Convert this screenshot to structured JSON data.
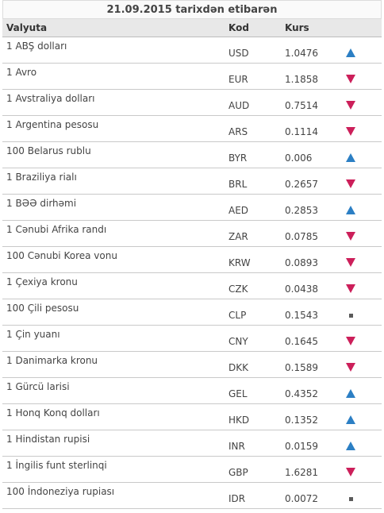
{
  "header": {
    "title": "21.09.2015 tarixdən etibarən"
  },
  "columns": {
    "currency": "Valyuta",
    "code": "Kod",
    "rate": "Kurs"
  },
  "colors": {
    "up": "#2c7fc4",
    "down": "#cc1f5a",
    "flat": "#5a5a5a"
  },
  "rows": [
    {
      "name": "1 ABŞ dolları",
      "code": "USD",
      "rate": "1.0476",
      "trend": "up"
    },
    {
      "name": "1 Avro",
      "code": "EUR",
      "rate": "1.1858",
      "trend": "down"
    },
    {
      "name": "1 Avstraliya dolları",
      "code": "AUD",
      "rate": "0.7514",
      "trend": "down"
    },
    {
      "name": "1 Argentina pesosu",
      "code": "ARS",
      "rate": "0.1114",
      "trend": "down"
    },
    {
      "name": "100 Belarus rublu",
      "code": "BYR",
      "rate": "0.006",
      "trend": "up"
    },
    {
      "name": "1 Braziliya rialı",
      "code": "BRL",
      "rate": "0.2657",
      "trend": "down"
    },
    {
      "name": "1 BƏƏ dirhəmi",
      "code": "AED",
      "rate": "0.2853",
      "trend": "up"
    },
    {
      "name": "1 Cənubi Afrika randı",
      "code": "ZAR",
      "rate": "0.0785",
      "trend": "down"
    },
    {
      "name": "100 Cənubi Korea vonu",
      "code": "KRW",
      "rate": "0.0893",
      "trend": "down"
    },
    {
      "name": "1 Çexiya kronu",
      "code": "CZK",
      "rate": "0.0438",
      "trend": "down"
    },
    {
      "name": "100 Çili pesosu",
      "code": "CLP",
      "rate": "0.1543",
      "trend": "flat"
    },
    {
      "name": "1 Çin yuanı",
      "code": "CNY",
      "rate": "0.1645",
      "trend": "down"
    },
    {
      "name": "1 Danimarka kronu",
      "code": "DKK",
      "rate": "0.1589",
      "trend": "down"
    },
    {
      "name": "1 Gürcü larisi",
      "code": "GEL",
      "rate": "0.4352",
      "trend": "up"
    },
    {
      "name": "1 Honq Konq dolları",
      "code": "HKD",
      "rate": "0.1352",
      "trend": "up"
    },
    {
      "name": "1 Hindistan rupisi",
      "code": "INR",
      "rate": "0.0159",
      "trend": "up"
    },
    {
      "name": "1 İngilis funt sterlinqi",
      "code": "GBP",
      "rate": "1.6281",
      "trend": "down"
    },
    {
      "name": "100 İndoneziya rupiası",
      "code": "IDR",
      "rate": "0.0072",
      "trend": "flat"
    }
  ]
}
